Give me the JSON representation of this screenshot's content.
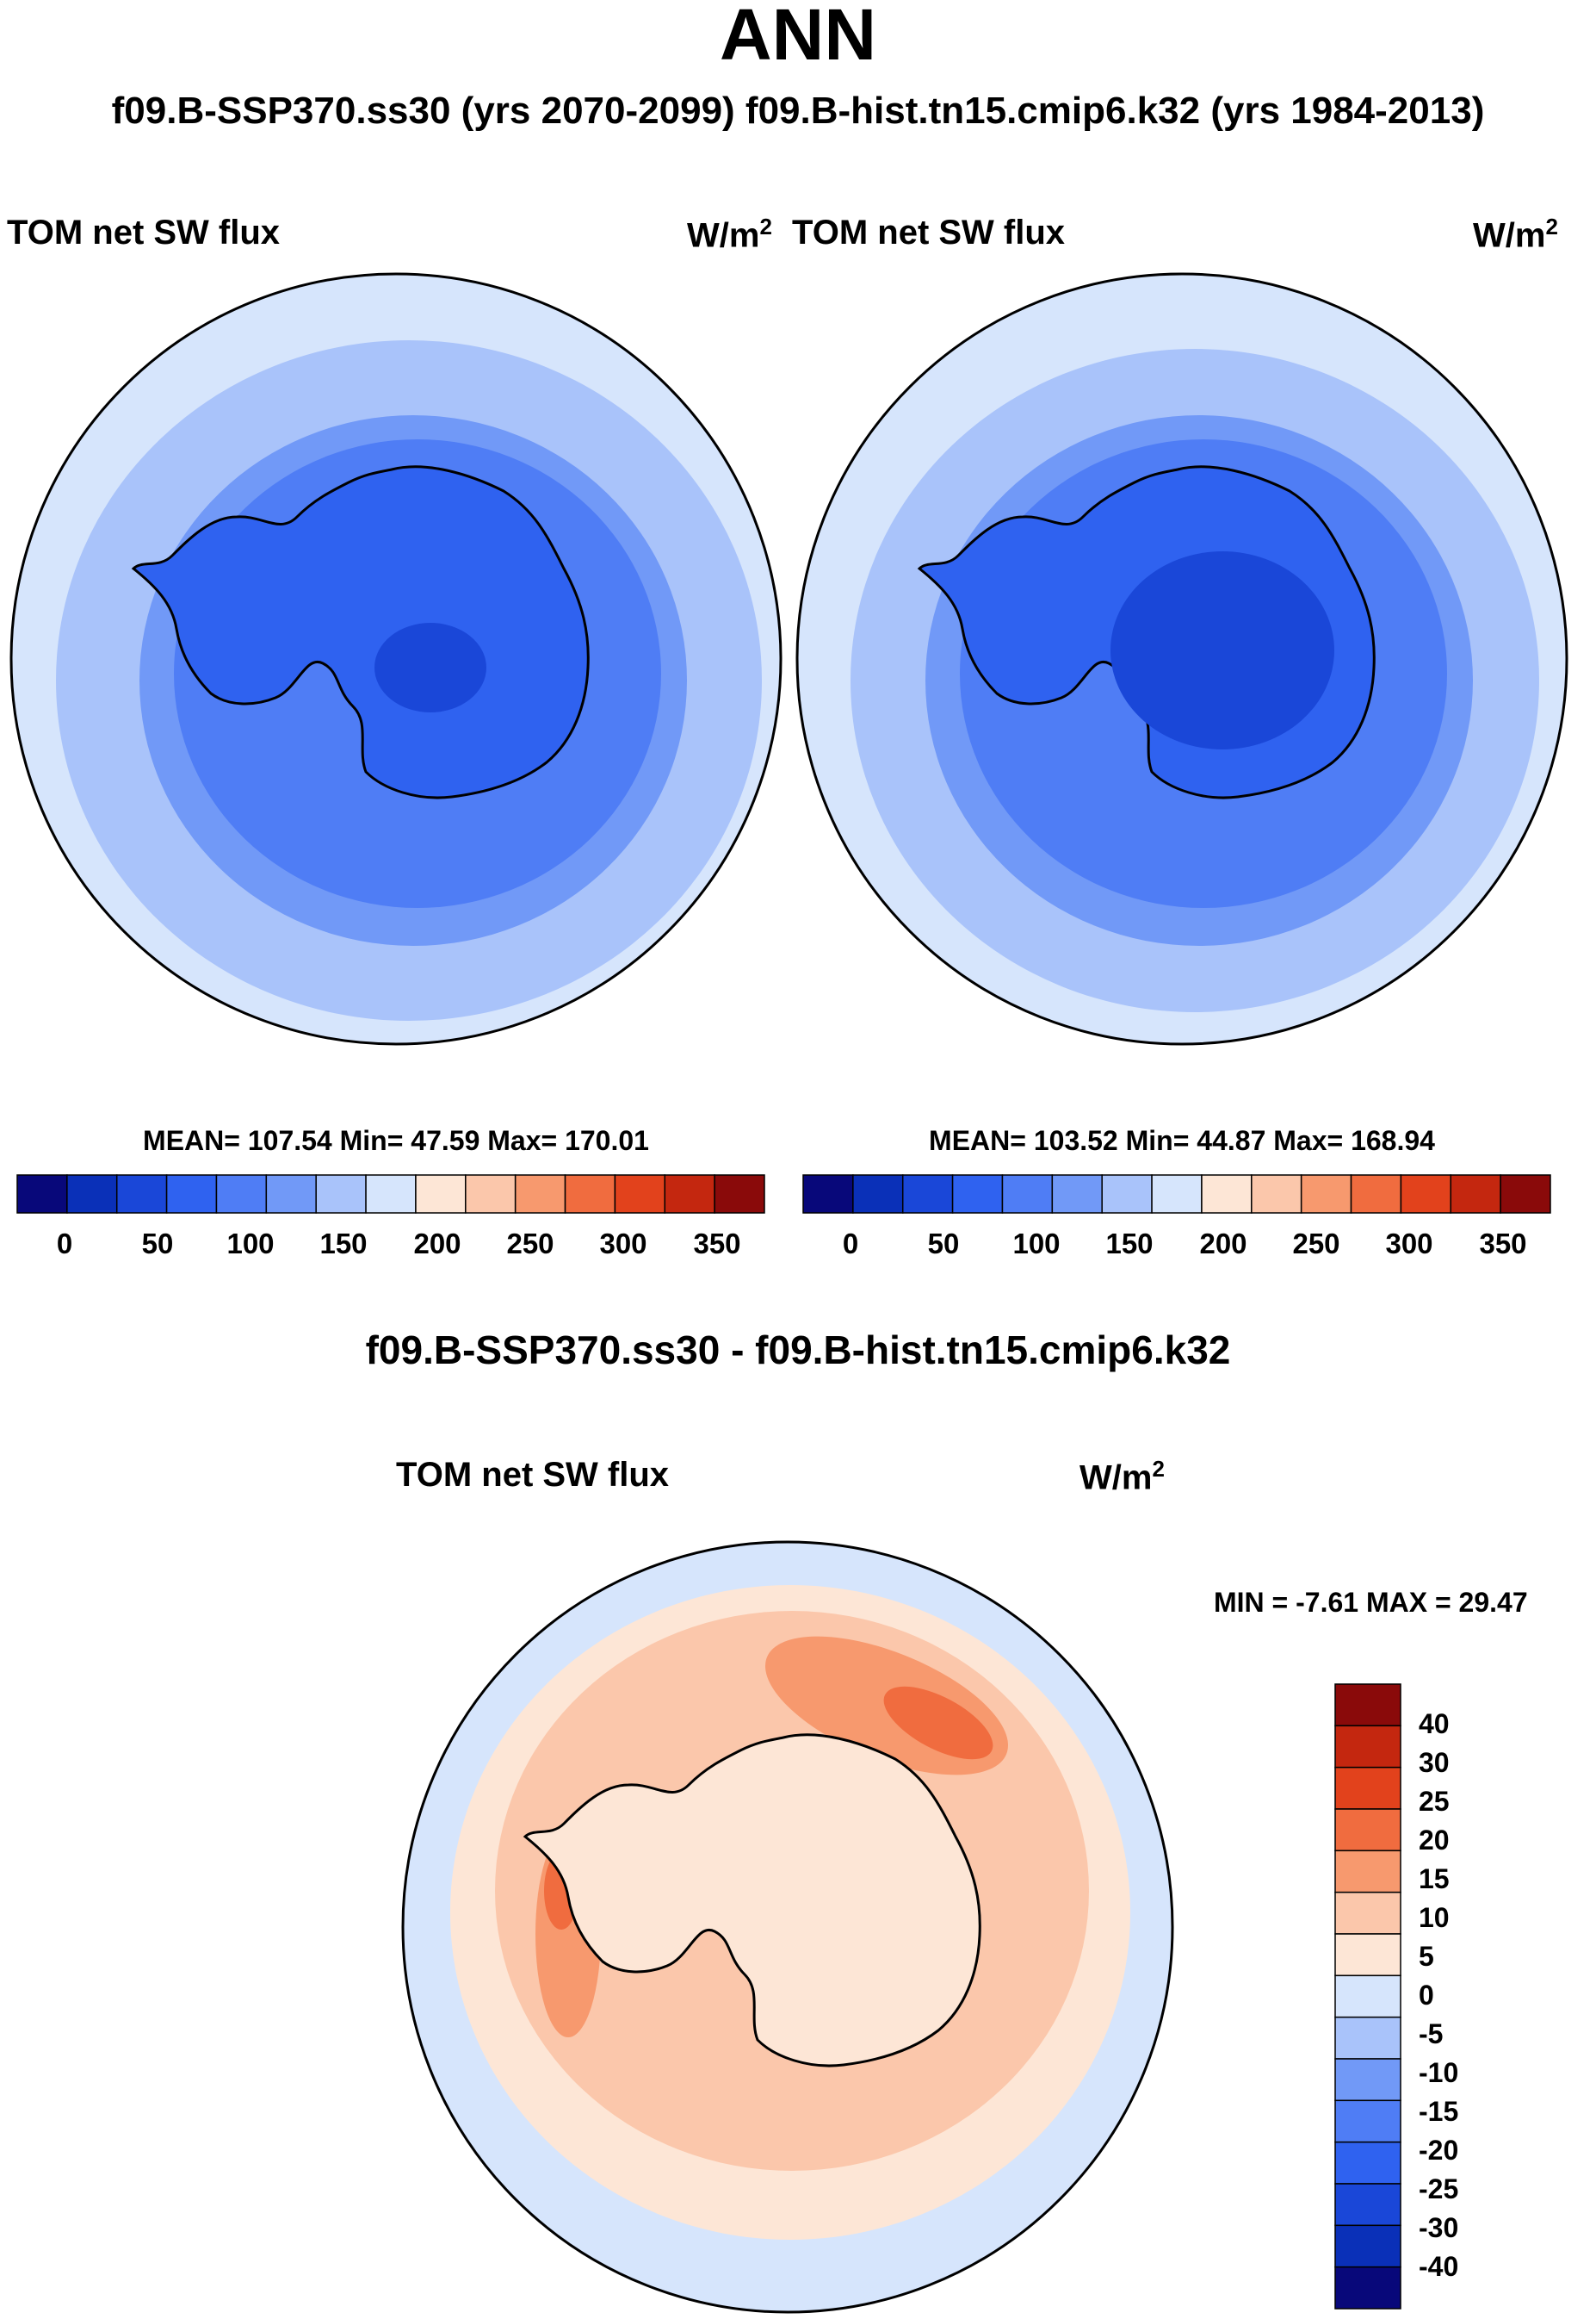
{
  "title": "ANN",
  "subtitle": "f09.B-SSP370.ss30 (yrs 2070-2099)  f09.B-hist.tn15.cmip6.k32 (yrs 1984-2013)",
  "panels": [
    {
      "title": "TOM net SW flux",
      "unit": "W/m",
      "unit_sup": "2",
      "stats": "MEAN= 107.54  Min=  47.59  Max= 170.01"
    },
    {
      "title": "TOM net SW flux",
      "unit": "W/m",
      "unit_sup": "2",
      "stats": "MEAN= 103.52  Min=  44.87  Max= 168.94"
    }
  ],
  "colorbar": {
    "ticks": [
      "0",
      "50",
      "100",
      "150",
      "200",
      "250",
      "300",
      "350"
    ],
    "colors": [
      "#08087a",
      "#0a30b8",
      "#1a47d8",
      "#2f62f0",
      "#4f7df5",
      "#7199f7",
      "#a9c3fa",
      "#d6e5fc",
      "#fde6d6",
      "#fbc7ab",
      "#f7996e",
      "#f06c3f",
      "#e2421c",
      "#c4270f",
      "#8a0a0a"
    ]
  },
  "difference": {
    "title": "f09.B-SSP370.ss30 - f09.B-hist.tn15.cmip6.k32",
    "panel_title": "TOM net SW flux",
    "unit": "W/m",
    "unit_sup": "2",
    "minmax": "MIN =  -7.61 MAX =  29.47",
    "ticks": [
      "40",
      "30",
      "25",
      "20",
      "15",
      "10",
      "5",
      "0",
      "-5",
      "-10",
      "-15",
      "-20",
      "-25",
      "-30",
      "-40"
    ],
    "colors": [
      "#8a0a0a",
      "#c4270f",
      "#e2421c",
      "#f06c3f",
      "#f7996e",
      "#fbc7ab",
      "#fde6d6",
      "#d6e5fc",
      "#a9c3fa",
      "#7199f7",
      "#4f7df5",
      "#2f62f0",
      "#1a47d8",
      "#0a30b8",
      "#08087a"
    ]
  },
  "chart_data": [
    {
      "type": "heatmap",
      "projection": "south polar stereographic",
      "title": "TOM net SW flux",
      "units": "W/m2",
      "case": "f09.B-SSP370.ss30 (yrs 2070-2099)",
      "mean": 107.54,
      "min": 47.59,
      "max": 170.01,
      "levels": [
        0,
        25,
        50,
        75,
        100,
        125,
        150,
        175,
        200,
        225,
        250,
        275,
        300,
        325,
        350
      ]
    },
    {
      "type": "heatmap",
      "projection": "south polar stereographic",
      "title": "TOM net SW flux",
      "units": "W/m2",
      "case": "f09.B-hist.tn15.cmip6.k32 (yrs 1984-2013)",
      "mean": 103.52,
      "min": 44.87,
      "max": 168.94,
      "levels": [
        0,
        25,
        50,
        75,
        100,
        125,
        150,
        175,
        200,
        225,
        250,
        275,
        300,
        325,
        350
      ]
    },
    {
      "type": "heatmap",
      "projection": "south polar stereographic",
      "title": "TOM net SW flux (difference)",
      "units": "W/m2",
      "min": -7.61,
      "max": 29.47,
      "levels": [
        -40,
        -30,
        -25,
        -20,
        -15,
        -10,
        -5,
        0,
        5,
        10,
        15,
        20,
        25,
        30,
        40
      ]
    }
  ]
}
